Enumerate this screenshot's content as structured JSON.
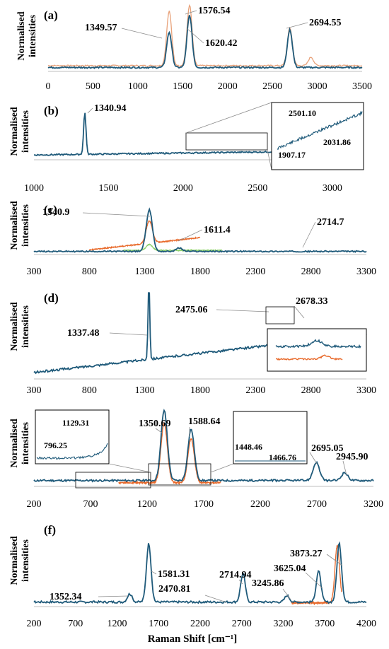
{
  "colors": {
    "blue": "#1f5a7a",
    "orange": "#e8692a",
    "light_orange": "#e8a27a",
    "green": "#8fd16e"
  },
  "x_axis_label": "Raman Shift [cm⁻¹]",
  "chart_data": [
    {
      "id": "a",
      "type": "line",
      "panel_label": "(a)",
      "ylabel": "Normalised intensities",
      "xlim": [
        0,
        3500
      ],
      "xticks": [
        0,
        500,
        1000,
        1500,
        2000,
        2500,
        3000,
        3500
      ],
      "tick_labels": [
        "0",
        "500",
        "1000",
        "1500",
        "2000",
        "2500",
        "3000",
        "3500"
      ],
      "series": [
        {
          "color": "light_orange",
          "peaks": [
            [
              1349.57,
              0.9
            ],
            [
              1576.54,
              1.0
            ],
            [
              2694.55,
              0.62
            ],
            [
              2930,
              0.14
            ]
          ],
          "baseline": 0.06
        },
        {
          "color": "blue",
          "peaks": [
            [
              1349.57,
              0.58
            ],
            [
              1576.54,
              0.86
            ],
            [
              2694.55,
              0.62
            ]
          ],
          "baseline": 0.03
        }
      ],
      "annotations": [
        "1349.57",
        "1576.54",
        "1620.42",
        "2694.55"
      ]
    },
    {
      "id": "b",
      "type": "line",
      "panel_label": "(b)",
      "ylabel": "Normalised intensities",
      "xlim": [
        1000,
        3200
      ],
      "xticks": [
        1000,
        1500,
        2000,
        2500,
        3000
      ],
      "tick_labels": [
        "1000",
        "1500",
        "2000",
        "2500",
        "3000"
      ],
      "series": [
        {
          "color": "blue",
          "peaks": [
            [
              1340.94,
              0.78
            ]
          ],
          "baseline_start": 0.05,
          "baseline_end": 0.13
        }
      ],
      "annotations": [
        "1340.94"
      ],
      "inset_annotations": [
        "2501.10",
        "2031.86",
        "1907.17"
      ]
    },
    {
      "id": "c",
      "type": "line",
      "panel_label": "(c)",
      "ylabel": "Normalised intensities",
      "xlim": [
        300,
        3300
      ],
      "xticks": [
        300,
        800,
        1300,
        1800,
        2300,
        2800,
        3300
      ],
      "tick_labels": [
        "300",
        "800",
        "1300",
        "1800",
        "2300",
        "2800",
        "3300"
      ],
      "series": [
        {
          "color": "orange",
          "x_range": [
            800,
            1800
          ],
          "peaks": [
            [
              1340.9,
              0.45
            ]
          ]
        },
        {
          "color": "green",
          "x_range": [
            1100,
            2000
          ],
          "peaks": [
            [
              1340.9,
              0.12
            ]
          ]
        },
        {
          "color": "blue",
          "peaks": [
            [
              1340.9,
              0.84
            ],
            [
              1611.4,
              0.07
            ]
          ],
          "baseline": 0.02
        }
      ],
      "annotations": [
        "1340.9",
        "1611.4",
        "2714.7"
      ]
    },
    {
      "id": "d",
      "type": "line",
      "panel_label": "(d)",
      "ylabel": "Normalised intensities",
      "xlim": [
        300,
        3300
      ],
      "xticks": [
        300,
        800,
        1300,
        1800,
        2300,
        2800,
        3300
      ],
      "tick_labels": [
        "300",
        "800",
        "1300",
        "1800",
        "2300",
        "2800",
        "3300"
      ],
      "series": [
        {
          "color": "blue",
          "peaks": [
            [
              1337.48,
              0.9
            ],
            [
              2475.06,
              0.06
            ],
            [
              2678.33,
              0.08
            ]
          ],
          "baseline_start": 0.05,
          "baseline_end": 0.5
        }
      ],
      "annotations": [
        "1337.48",
        "2475.06",
        "2678.33"
      ]
    },
    {
      "id": "e",
      "type": "line",
      "panel_label": "(e)",
      "ylabel": "Normalised intensities",
      "xlim": [
        200,
        3200
      ],
      "xticks": [
        200,
        700,
        1200,
        1700,
        2200,
        2700,
        3200
      ],
      "tick_labels": [
        "200",
        "700",
        "1200",
        "1700",
        "2200",
        "2700",
        "3200"
      ],
      "series": [
        {
          "color": "orange",
          "x_range": [
            950,
            1850
          ],
          "peaks": [
            [
              1350.69,
              0.78
            ],
            [
              1588.64,
              0.58
            ]
          ]
        },
        {
          "color": "blue",
          "peaks": [
            [
              1350.69,
              0.93
            ],
            [
              1588.64,
              0.68
            ],
            [
              2695.05,
              0.24
            ],
            [
              2945.9,
              0.1
            ]
          ],
          "baseline": 0.05
        }
      ],
      "annotations": [
        "1350.69",
        "1588.64",
        "2695.05",
        "2945.90"
      ],
      "inset_annotations": [
        "1129.31",
        "796.25",
        "1448.46",
        "1466.76"
      ]
    },
    {
      "id": "f",
      "type": "line",
      "panel_label": "(f)",
      "ylabel": "Normalised intensities",
      "xlim": [
        200,
        4200
      ],
      "xticks": [
        200,
        700,
        1200,
        1700,
        2200,
        2700,
        3200,
        3700,
        4200
      ],
      "tick_labels": [
        "200",
        "700",
        "1200",
        "1700",
        "2200",
        "2700",
        "3200",
        "3700",
        "4200"
      ],
      "series": [
        {
          "color": "orange",
          "x_range": [
            3300,
            3900
          ],
          "peaks": [
            [
              3850,
              0.7
            ]
          ]
        },
        {
          "color": "blue",
          "peaks": [
            [
              1352.34,
              0.1
            ],
            [
              1581.31,
              0.72
            ],
            [
              2714.94,
              0.35
            ],
            [
              3245.86,
              0.08
            ],
            [
              3625.04,
              0.38
            ],
            [
              3873.27,
              0.72
            ]
          ],
          "baseline": 0.03
        }
      ],
      "annotations": [
        "1352.34",
        "1581.31",
        "2470.81",
        "2714.94",
        "3245.86",
        "3625.04",
        "3873.27"
      ]
    }
  ]
}
